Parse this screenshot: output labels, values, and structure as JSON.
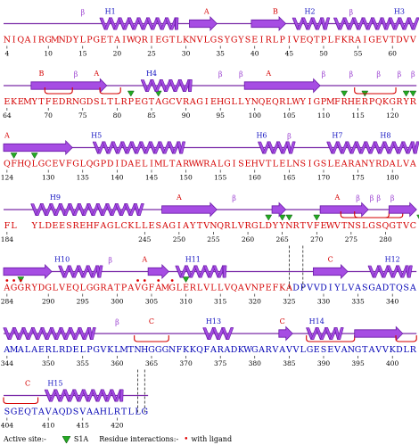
{
  "colors": {
    "sequence_red": "#d40000",
    "sequence_blue": "#0000b4",
    "helix_fill": "#a64de3",
    "helix_stroke": "#6a1aa8",
    "strand_fill": "#a64de3",
    "turn": "#d40000",
    "label_blue": "#1010c0",
    "label_red": "#d40000",
    "beta_label": "#9a40d0",
    "site_triangle": "#22aa22",
    "ligand_dot": "#e00000"
  },
  "rows": [
    {
      "seq": "NIQAIRGMNDYLPGETAIWQRIEGTLKNVLGSYGYSEIRLPIVEQTPLFKRAIGEVTDVV",
      "ticks": [
        {
          "t": "4",
          "c": 0
        },
        {
          "t": "10",
          "c": 6
        },
        {
          "t": "15",
          "c": 11
        },
        {
          "t": "20",
          "c": 16
        },
        {
          "t": "25",
          "c": 21
        },
        {
          "t": "30",
          "c": 26
        },
        {
          "t": "35",
          "c": 31
        },
        {
          "t": "40",
          "c": 36
        },
        {
          "t": "45",
          "c": 41
        },
        {
          "t": "50",
          "c": 46
        },
        {
          "t": "55",
          "c": 51
        },
        {
          "t": "60",
          "c": 56
        }
      ]
    },
    {
      "seq": "EKEMYTFEDRNGDSLTLRPEGTAGCVRAGIEHGLLYNQEQRLWYIGPMFRHERPQKGRYR",
      "ticks": [
        {
          "t": "64",
          "c": 0
        },
        {
          "t": "70",
          "c": 6
        },
        {
          "t": "75",
          "c": 11
        },
        {
          "t": "80",
          "c": 16
        },
        {
          "t": "85",
          "c": 21
        },
        {
          "t": "90",
          "c": 26
        },
        {
          "t": "95",
          "c": 31
        },
        {
          "t": "100",
          "c": 36
        },
        {
          "t": "105",
          "c": 41
        },
        {
          "t": "110",
          "c": 46
        },
        {
          "t": "115",
          "c": 51
        },
        {
          "t": "120",
          "c": 56
        }
      ]
    },
    {
      "seq": "QFHQLGCEVFGLQGPDIDAELIMLTARWWRALGISEHVTLELNSIGSLEARANYRDALVA",
      "ticks": [
        {
          "t": "124",
          "c": 0
        },
        {
          "t": "130",
          "c": 6
        },
        {
          "t": "135",
          "c": 11
        },
        {
          "t": "140",
          "c": 16
        },
        {
          "t": "145",
          "c": 21
        },
        {
          "t": "150",
          "c": 26
        },
        {
          "t": "155",
          "c": 31
        },
        {
          "t": "160",
          "c": 36
        },
        {
          "t": "165",
          "c": 41
        },
        {
          "t": "170",
          "c": 46
        },
        {
          "t": "175",
          "c": 51
        },
        {
          "t": "180",
          "c": 56
        }
      ]
    },
    {
      "seq": "FL  YLDEESREHFAGLCKLLESAGIAYTVNQRLVRGLDYYNRTVFEWVTNSLGSQGTVC",
      "ticks": [
        {
          "t": "184",
          "c": 0
        },
        {
          "t": "245",
          "c": 20
        },
        {
          "t": "250",
          "c": 25
        },
        {
          "t": "255",
          "c": 30
        },
        {
          "t": "260",
          "c": 35
        },
        {
          "t": "265",
          "c": 40
        },
        {
          "t": "270",
          "c": 45
        },
        {
          "t": "275",
          "c": 50
        },
        {
          "t": "280",
          "c": 55
        }
      ]
    },
    {
      "seq": "AGGRYDGLVEQLGGRATPAVGFAMGLERLVLLVQAVNPEFKADPVVDIYLVASGADTQSA",
      "blue_from": 42,
      "ticks": [
        {
          "t": "284",
          "c": 0
        },
        {
          "t": "290",
          "c": 6
        },
        {
          "t": "295",
          "c": 11
        },
        {
          "t": "300",
          "c": 16
        },
        {
          "t": "305",
          "c": 21
        },
        {
          "t": "310",
          "c": 26
        },
        {
          "t": "315",
          "c": 31
        },
        {
          "t": "320",
          "c": 36
        },
        {
          "t": "325",
          "c": 41
        },
        {
          "t": "330",
          "c": 46
        },
        {
          "t": "335",
          "c": 51
        },
        {
          "t": "340",
          "c": 56
        }
      ]
    },
    {
      "seq": "AMALAERLRDELPGVKLMTNHGGGNFKKQFARADKWGARVAVVLGESEVANGTAVVKDLR",
      "blue_from": 0,
      "ticks": [
        {
          "t": "344",
          "c": 0
        },
        {
          "t": "350",
          "c": 6
        },
        {
          "t": "355",
          "c": 11
        },
        {
          "t": "360",
          "c": 16
        },
        {
          "t": "365",
          "c": 21
        },
        {
          "t": "370",
          "c": 26
        },
        {
          "t": "375",
          "c": 31
        },
        {
          "t": "380",
          "c": 36
        },
        {
          "t": "385",
          "c": 41
        },
        {
          "t": "390",
          "c": 46
        },
        {
          "t": "395",
          "c": 51
        },
        {
          "t": "400",
          "c": 56
        }
      ]
    },
    {
      "seq": "SGEQTAVAQDSVAAHLRTLLG",
      "blue_from": 0,
      "ticks": [
        {
          "t": "404",
          "c": 0
        },
        {
          "t": "410",
          "c": 6
        },
        {
          "t": "415",
          "c": 11
        },
        {
          "t": "420",
          "c": 16
        }
      ]
    }
  ],
  "features": [
    [
      {
        "k": "beta",
        "c": 11
      },
      {
        "k": "helix",
        "s": 14,
        "e": 25
      },
      {
        "k": "label",
        "t": "H1",
        "c": 15,
        "col": "blue"
      },
      {
        "k": "strand",
        "s": 27,
        "e": 31
      },
      {
        "k": "label",
        "t": "A",
        "c": 29,
        "col": "red"
      },
      {
        "k": "strand",
        "s": 36,
        "e": 41
      },
      {
        "k": "label",
        "t": "B",
        "c": 39,
        "col": "red"
      },
      {
        "k": "helix",
        "s": 42,
        "e": 47
      },
      {
        "k": "label",
        "t": "H2",
        "c": 44,
        "col": "blue"
      },
      {
        "k": "helix",
        "s": 48,
        "e": 56
      },
      {
        "k": "beta",
        "c": 50
      },
      {
        "k": "helix",
        "s": 56,
        "e": 60
      },
      {
        "k": "label",
        "t": "H3",
        "c": 57,
        "col": "blue"
      }
    ],
    [
      {
        "k": "strand",
        "s": 4,
        "e": 15
      },
      {
        "k": "label",
        "t": "B",
        "c": 5,
        "col": "red"
      },
      {
        "k": "turn",
        "s": 6,
        "e": 10
      },
      {
        "k": "label",
        "t": "A",
        "c": 13,
        "col": "red"
      },
      {
        "k": "beta",
        "c": 10
      },
      {
        "k": "turn",
        "s": 14,
        "e": 17
      },
      {
        "k": "helix",
        "s": 20,
        "e": 27
      },
      {
        "k": "label",
        "t": "H4",
        "c": 21,
        "col": "blue"
      },
      {
        "k": "beta",
        "c": 31
      },
      {
        "k": "beta",
        "c": 34
      },
      {
        "k": "strand",
        "s": 35,
        "e": 46
      },
      {
        "k": "label",
        "t": "A",
        "c": 38,
        "col": "red"
      },
      {
        "k": "beta",
        "c": 46
      },
      {
        "k": "beta",
        "c": 50
      },
      {
        "k": "beta",
        "c": 54
      },
      {
        "k": "turn",
        "s": 51,
        "e": 57
      },
      {
        "k": "beta",
        "c": 57
      },
      {
        "k": "beta",
        "c": 59
      }
    ],
    [
      {
        "k": "label",
        "t": "A",
        "c": 0,
        "col": "red"
      },
      {
        "k": "strand",
        "s": 0,
        "e": 10
      },
      {
        "k": "helix",
        "s": 13,
        "e": 26
      },
      {
        "k": "label",
        "t": "H5",
        "c": 13,
        "col": "blue"
      },
      {
        "k": "helix",
        "s": 37,
        "e": 42
      },
      {
        "k": "label",
        "t": "H6",
        "c": 37,
        "col": "blue"
      },
      {
        "k": "beta",
        "c": 41
      },
      {
        "k": "helix",
        "s": 47,
        "e": 60
      },
      {
        "k": "label",
        "t": "H7",
        "c": 48,
        "col": "blue"
      },
      {
        "k": "label",
        "t": "H8",
        "c": 55,
        "col": "blue"
      }
    ],
    [
      {
        "k": "helix",
        "s": 4,
        "e": 20
      },
      {
        "k": "label",
        "t": "H9",
        "c": 7,
        "col": "blue"
      },
      {
        "k": "strand",
        "s": 23,
        "e": 31
      },
      {
        "k": "label",
        "t": "A",
        "c": 25,
        "col": "red"
      },
      {
        "k": "beta",
        "c": 33
      },
      {
        "k": "strand",
        "s": 39,
        "e": 41
      },
      {
        "k": "strand",
        "s": 46,
        "e": 53
      },
      {
        "k": "label",
        "t": "A",
        "c": 48,
        "col": "red"
      },
      {
        "k": "beta",
        "c": 51
      },
      {
        "k": "beta",
        "c": 53
      },
      {
        "k": "beta",
        "c": 54
      },
      {
        "k": "beta",
        "c": 56
      },
      {
        "k": "turn",
        "s": 51,
        "e": 58
      },
      {
        "k": "turn",
        "s": 49,
        "e": 56
      },
      {
        "k": "strand",
        "s": 56,
        "e": 60
      }
    ],
    [
      {
        "k": "strand",
        "s": 0,
        "e": 7
      },
      {
        "k": "helix",
        "s": 8,
        "e": 14
      },
      {
        "k": "label",
        "t": "H10",
        "c": 8,
        "col": "blue"
      },
      {
        "k": "beta",
        "c": 15
      },
      {
        "k": "label",
        "t": "A",
        "c": 20,
        "col": "red"
      },
      {
        "k": "strand",
        "s": 21,
        "e": 24
      },
      {
        "k": "helix",
        "s": 25,
        "e": 32
      },
      {
        "k": "label",
        "t": "H11",
        "c": 27,
        "col": "blue"
      },
      {
        "k": "strand",
        "s": 45,
        "e": 50
      },
      {
        "k": "label",
        "t": "C",
        "c": 47,
        "col": "red"
      },
      {
        "k": "helix",
        "s": 53,
        "e": 59
      },
      {
        "k": "label",
        "t": "H12",
        "c": 56,
        "col": "blue"
      }
    ],
    [
      {
        "k": "helix",
        "s": 0,
        "e": 13
      },
      {
        "k": "beta",
        "c": 16
      },
      {
        "k": "label",
        "t": "C",
        "c": 21,
        "col": "red"
      },
      {
        "k": "turn",
        "s": 19,
        "e": 24
      },
      {
        "k": "helix",
        "s": 29,
        "e": 33
      },
      {
        "k": "label",
        "t": "H13",
        "c": 30,
        "col": "blue"
      },
      {
        "k": "label",
        "t": "C",
        "c": 40,
        "col": "red"
      },
      {
        "k": "strand",
        "s": 40,
        "e": 42
      },
      {
        "k": "helix",
        "s": 44,
        "e": 49
      },
      {
        "k": "label",
        "t": "H14",
        "c": 45,
        "col": "blue"
      },
      {
        "k": "turn",
        "s": 44,
        "e": 51
      },
      {
        "k": "strand",
        "s": 51,
        "e": 58
      },
      {
        "k": "turn",
        "s": 57,
        "e": 60
      }
    ],
    [
      {
        "k": "label",
        "t": "C",
        "c": 3,
        "col": "red"
      },
      {
        "k": "turn",
        "s": 0,
        "e": 5
      },
      {
        "k": "helix",
        "s": 6,
        "e": 17
      },
      {
        "k": "label",
        "t": "H15",
        "c": 7,
        "col": "blue"
      }
    ]
  ],
  "triangles": [
    [],
    [
      {
        "c": 18
      },
      {
        "c": 22
      },
      {
        "c": 49
      },
      {
        "c": 52
      },
      {
        "c": 58
      },
      {
        "c": 59
      }
    ],
    [
      {
        "c": 1
      },
      {
        "c": 4
      }
    ],
    [
      {
        "c": 38
      },
      {
        "c": 40
      },
      {
        "c": 41
      },
      {
        "c": 45
      },
      {
        "c": 60
      }
    ],
    [
      {
        "c": 2
      },
      {
        "c": 26
      }
    ],
    [],
    []
  ],
  "dots": [
    [],
    [],
    [],
    [],
    [
      {
        "c": 0
      },
      {
        "c": 1
      },
      {
        "c": 2
      },
      {
        "c": 19
      },
      {
        "c": 20
      },
      {
        "c": 22
      },
      {
        "c": 24
      }
    ],
    [],
    []
  ],
  "dashed_lines": [
    {
      "row": 4,
      "c": 41.5
    },
    {
      "row": 4,
      "c": 43.5
    },
    {
      "row": 6,
      "c": 19.5
    },
    {
      "row": 6,
      "c": 20.5
    }
  ],
  "legend": {
    "active_site_label": "Active site:-",
    "site_label": "S1A",
    "residue_label": "Residue interactions:-",
    "ligand_label": "with ligand"
  }
}
